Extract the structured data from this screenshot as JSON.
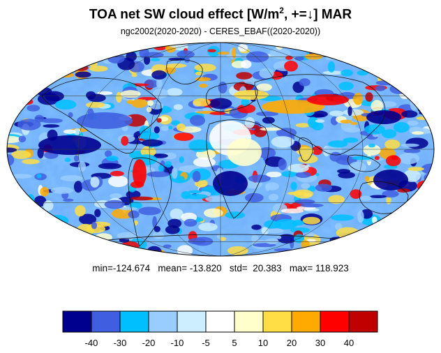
{
  "title": {
    "main": "TOA net SW cloud effect [W/m",
    "sup": "2",
    "after": ", +=↓]  MAR"
  },
  "subtitle": "ngc2002(2020-2020) - CERES_EBAF((2020-2020))",
  "stats": "min=-124.674   mean= -13.820   std=  20.383   max= 118.923",
  "colorbar": {
    "colors": [
      "#00008f",
      "#3f5fe0",
      "#00bfff",
      "#99ccff",
      "#cceeff",
      "#ffffff",
      "#ffffcc",
      "#ffdd44",
      "#ffaa00",
      "#ff0000",
      "#c00000"
    ],
    "labels": [
      "-40",
      "-30",
      "-20",
      "-10",
      "-5",
      "5",
      "10",
      "20",
      "30",
      "40"
    ]
  },
  "map": {
    "projection": "mollweide",
    "ocean_fill": "#8cc6ff"
  }
}
